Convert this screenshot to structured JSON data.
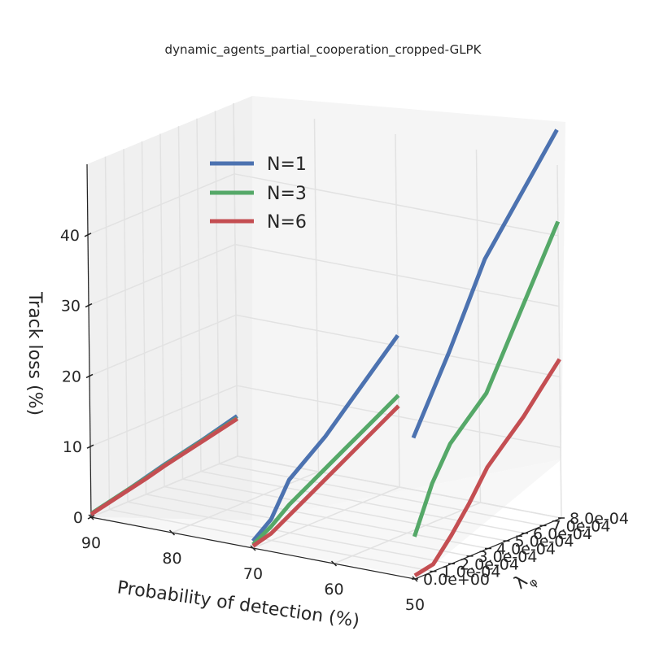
{
  "chart_data": {
    "type": "line",
    "title": "dynamic_agents_partial_cooperation_cropped-GLPK",
    "xlabel": "Probability of detection (%)",
    "ylabel": "λ_φ",
    "zlabel": "Track loss (%)",
    "x_ticks": [
      "90",
      "80",
      "70",
      "60",
      "50"
    ],
    "y_ticks": [
      "0.0e+00",
      "1.0e-04",
      "2.0e-04",
      "3.0e-04",
      "4.0e-04",
      "5.0e-04",
      "6.0e-04",
      "7.0e-04",
      "8.0e-04"
    ],
    "z_ticks": [
      "0",
      "10",
      "20",
      "30",
      "40"
    ],
    "xlim": [
      90,
      50
    ],
    "ylim": [
      0,
      0.0008
    ],
    "zlim": [
      0,
      50
    ],
    "grid": true,
    "legend_position": "top-left",
    "x": [
      90,
      70,
      50
    ],
    "lambda": [
      0,
      0.0001,
      0.0002,
      0.0003,
      0.0004,
      0.0005,
      0.0006,
      0.0007,
      0.0008
    ],
    "series": [
      {
        "name": "N=1",
        "color": "#4c72b0",
        "values": [
          [
            0.5,
            1.1,
            1.7,
            2.4,
            3.1,
            3.7,
            4.3,
            5.0,
            5.7
          ],
          [
            1.0,
            3.0,
            7.5,
            9.5,
            11.5,
            14.0,
            16.5,
            19.0,
            21.5
          ],
          [
            20.0,
            25.0,
            30.0,
            35.5,
            41.0,
            44.5,
            48.0,
            51.5,
            55.0
          ]
        ]
      },
      {
        "name": "N=3",
        "color": "#55a868",
        "values": [
          [
            0.5,
            1.1,
            1.7,
            2.3,
            3.0,
            3.6,
            4.2,
            4.8,
            5.4
          ],
          [
            0.5,
            2.0,
            4.0,
            5.5,
            7.0,
            8.5,
            10.0,
            11.5,
            13.0
          ],
          [
            6.0,
            12.5,
            17.0,
            19.5,
            22.0,
            27.0,
            32.0,
            37.0,
            42.0
          ]
        ]
      },
      {
        "name": "N=6",
        "color": "#c44e52",
        "values": [
          [
            0.4,
            1.0,
            1.6,
            2.2,
            2.9,
            3.5,
            4.1,
            4.7,
            5.3
          ],
          [
            0.3,
            1.0,
            2.5,
            4.0,
            5.5,
            7.0,
            8.5,
            10.0,
            11.5
          ],
          [
            0.5,
            1.0,
            4.0,
            7.5,
            11.5,
            14.0,
            16.5,
            19.5,
            22.5
          ]
        ]
      }
    ]
  }
}
